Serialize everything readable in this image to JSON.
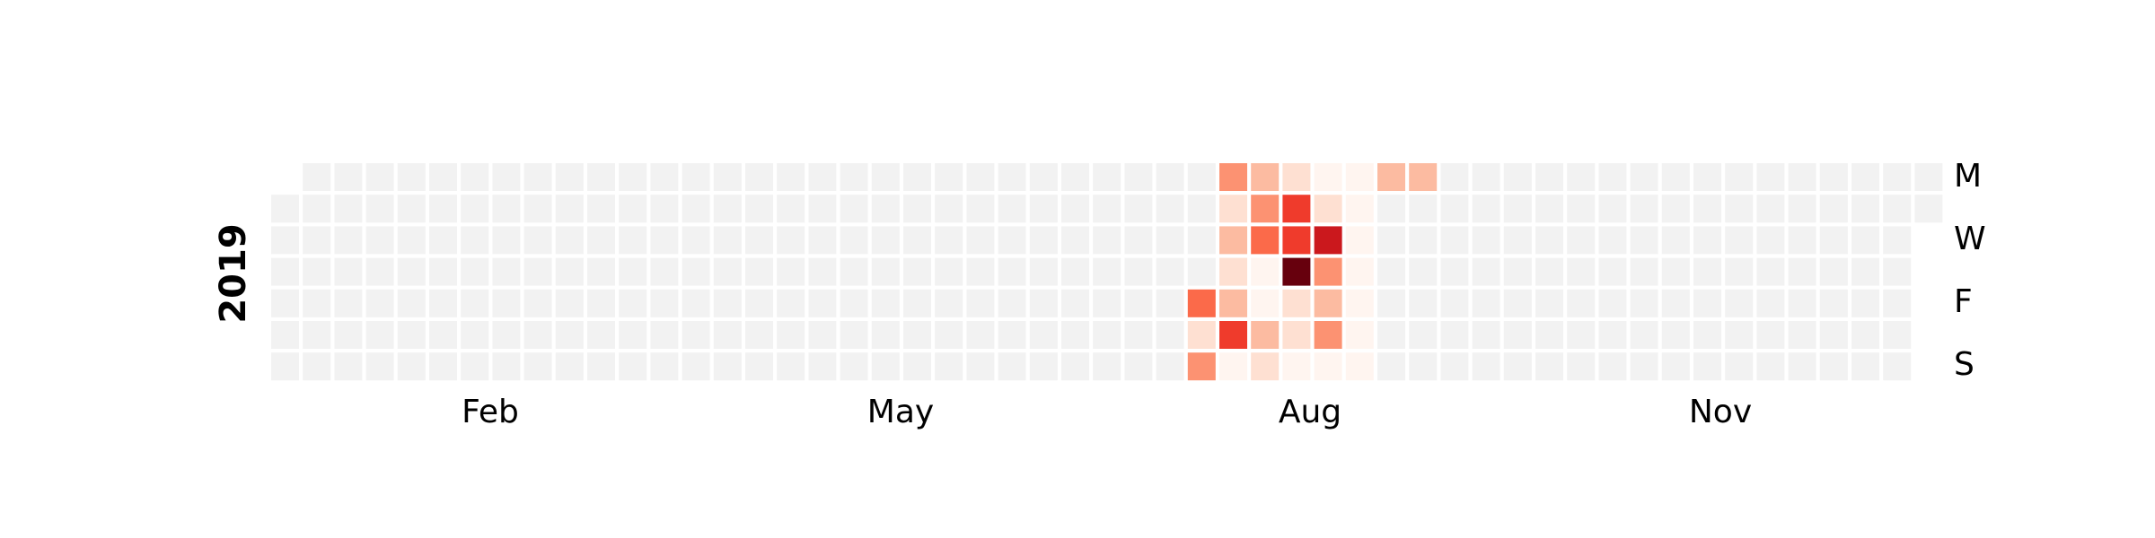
{
  "chart_data": {
    "type": "heatmap",
    "title": "",
    "year": "2019",
    "year_label": "2019",
    "month_labels": [
      "Feb",
      "May",
      "Aug",
      "Nov"
    ],
    "weekday_labels": [
      "M",
      "W",
      "F",
      "S"
    ],
    "legend": "none",
    "grid": false,
    "empty_color": "#f2f2f2",
    "colormap": [
      "#fff5f0",
      "#fee0d2",
      "#fcbba1",
      "#fc9272",
      "#fb6a4a",
      "#ef3b2c",
      "#cb181d",
      "#99000d",
      "#67000d"
    ],
    "vmin": 0,
    "vmax": 8,
    "start_date": "2019-01-01",
    "end_date": "2019-12-31",
    "values": [
      {
        "date": "2019-07-26",
        "value": 4
      },
      {
        "date": "2019-07-27",
        "value": 1
      },
      {
        "date": "2019-07-28",
        "value": 3
      },
      {
        "date": "2019-07-29",
        "value": 3
      },
      {
        "date": "2019-07-30",
        "value": 1
      },
      {
        "date": "2019-07-31",
        "value": 2
      },
      {
        "date": "2019-08-01",
        "value": 1
      },
      {
        "date": "2019-08-02",
        "value": 2
      },
      {
        "date": "2019-08-03",
        "value": 5
      },
      {
        "date": "2019-08-04",
        "value": 0
      },
      {
        "date": "2019-08-05",
        "value": 2
      },
      {
        "date": "2019-08-06",
        "value": 3
      },
      {
        "date": "2019-08-07",
        "value": 4
      },
      {
        "date": "2019-08-08",
        "value": 0
      },
      {
        "date": "2019-08-09",
        "value": 0
      },
      {
        "date": "2019-08-10",
        "value": 2
      },
      {
        "date": "2019-08-11",
        "value": 1
      },
      {
        "date": "2019-08-12",
        "value": 1
      },
      {
        "date": "2019-08-13",
        "value": 5
      },
      {
        "date": "2019-08-14",
        "value": 5
      },
      {
        "date": "2019-08-15",
        "value": 8
      },
      {
        "date": "2019-08-16",
        "value": 1
      },
      {
        "date": "2019-08-17",
        "value": 1
      },
      {
        "date": "2019-08-18",
        "value": 0
      },
      {
        "date": "2019-08-19",
        "value": 0
      },
      {
        "date": "2019-08-20",
        "value": 1
      },
      {
        "date": "2019-08-21",
        "value": 6
      },
      {
        "date": "2019-08-22",
        "value": 3
      },
      {
        "date": "2019-08-23",
        "value": 2
      },
      {
        "date": "2019-08-24",
        "value": 3
      },
      {
        "date": "2019-08-25",
        "value": 0
      },
      {
        "date": "2019-08-26",
        "value": 0
      },
      {
        "date": "2019-08-27",
        "value": 0
      },
      {
        "date": "2019-08-28",
        "value": 0
      },
      {
        "date": "2019-08-29",
        "value": 0
      },
      {
        "date": "2019-08-30",
        "value": 0
      },
      {
        "date": "2019-08-31",
        "value": 0
      },
      {
        "date": "2019-09-01",
        "value": 0
      },
      {
        "date": "2019-09-02",
        "value": 2
      },
      {
        "date": "2019-09-09",
        "value": 2
      }
    ]
  }
}
